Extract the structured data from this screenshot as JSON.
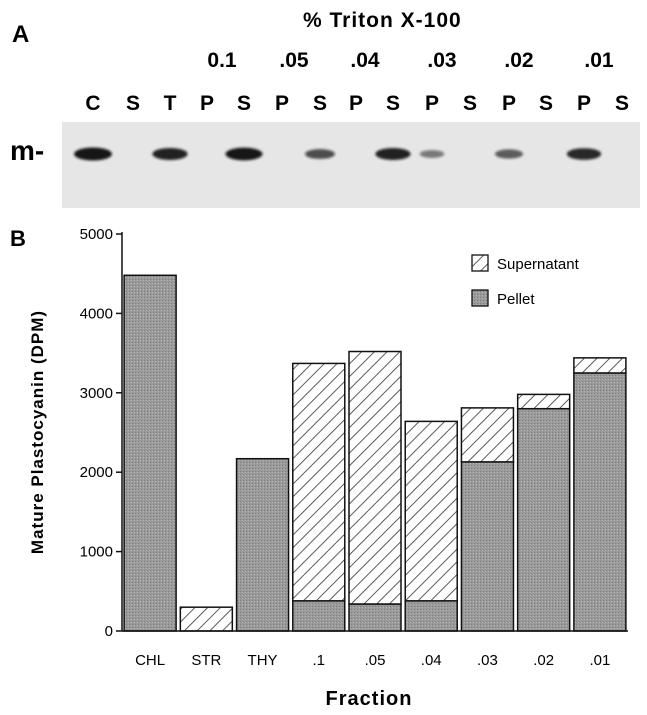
{
  "panel_a": {
    "label": "A",
    "title": "% Triton X-100",
    "concentrations": [
      "0.1",
      ".05",
      ".04",
      ".03",
      ".02",
      ".01"
    ],
    "lane_labels": [
      "C",
      "S",
      "T",
      "P",
      "S",
      "P",
      "S",
      "P",
      "S",
      "P",
      "S",
      "P",
      "S",
      "P",
      "S"
    ],
    "marker_label": "m-",
    "band_intensity": [
      1.0,
      0.0,
      0.85,
      0.0,
      0.95,
      0.0,
      0.55,
      0.0,
      0.85,
      0.25,
      0.0,
      0.45,
      0.0,
      0.8,
      0.0
    ]
  },
  "panel_b": {
    "label": "B"
  },
  "colors": {
    "pellet": "#9a9a9a",
    "supernatant_hatch": "#333333",
    "gel_background": "#e6e6e6",
    "band": "#151515"
  },
  "chart_data": {
    "type": "bar",
    "stacked": true,
    "categories": [
      "CHL",
      "STR",
      "THY",
      ".1",
      ".05",
      ".04",
      ".03",
      ".02",
      ".01"
    ],
    "series": [
      {
        "name": "Pellet",
        "values": [
          4480,
          0,
          2170,
          380,
          340,
          380,
          2130,
          2800,
          3250
        ]
      },
      {
        "name": "Supernatant",
        "values": [
          0,
          300,
          0,
          2990,
          3180,
          2260,
          680,
          180,
          190
        ]
      }
    ],
    "ylabel": "Mature Plastocyanin (DPM)",
    "xlabel": "Fraction",
    "ylim": [
      0,
      5000
    ],
    "yticks": [
      0,
      1000,
      2000,
      3000,
      4000,
      5000
    ],
    "legend_position": "top-right",
    "grid": false
  }
}
